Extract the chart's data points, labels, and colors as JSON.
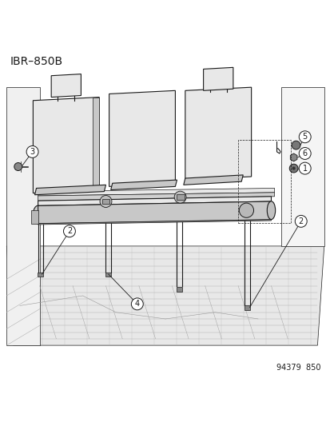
{
  "title": "IBR–850B",
  "footer": "94379  850",
  "bg_color": "#ffffff",
  "lc": "#1a1a1a",
  "title_fontsize": 10,
  "footer_fontsize": 7,
  "callout_r": 0.018,
  "callout_fs": 7
}
